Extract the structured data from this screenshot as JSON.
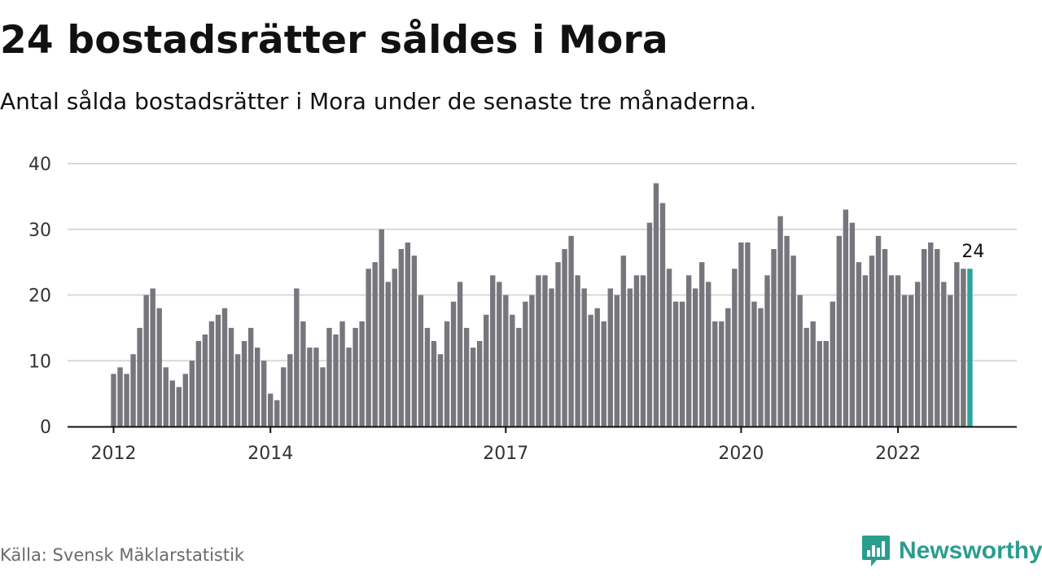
{
  "title": "24 bostadsrätter såldes i Mora",
  "subtitle": "Antal sålda bostadsrätter i Mora under de senaste tre månaderna.",
  "source": "Källa: Svensk Mäklarstatistik",
  "brand": "Newsworthy",
  "colors": {
    "bar": "#77767c",
    "highlight": "#2aa39a",
    "grid": "#d9d9d9",
    "axis": "#111111",
    "brand": "#2a9d8f"
  },
  "chart_data": {
    "type": "bar",
    "title": "24 bostadsrätter såldes i Mora",
    "subtitle": "Antal sålda bostadsrätter i Mora under de senaste tre månaderna.",
    "ylim": [
      0,
      40
    ],
    "yticks": [
      "0",
      "10",
      "20",
      "30",
      "40"
    ],
    "grid": true,
    "xticks": [
      {
        "label": "2012",
        "index": 0
      },
      {
        "label": "2014",
        "index": 24
      },
      {
        "label": "2017",
        "index": 60
      },
      {
        "label": "2020",
        "index": 96
      },
      {
        "label": "2022",
        "index": 120
      }
    ],
    "start": "2012-01",
    "frequency": "monthly",
    "highlight_label": "24",
    "highlight_index": 131,
    "values": [
      8,
      9,
      8,
      11,
      15,
      20,
      21,
      18,
      9,
      7,
      6,
      8,
      10,
      13,
      14,
      16,
      17,
      18,
      15,
      11,
      13,
      15,
      12,
      10,
      5,
      4,
      9,
      11,
      21,
      16,
      12,
      12,
      9,
      15,
      14,
      16,
      12,
      15,
      16,
      24,
      25,
      30,
      22,
      24,
      27,
      28,
      26,
      20,
      15,
      13,
      11,
      16,
      19,
      22,
      15,
      12,
      13,
      17,
      23,
      22,
      20,
      17,
      15,
      19,
      20,
      23,
      23,
      21,
      25,
      27,
      29,
      23,
      21,
      17,
      18,
      16,
      21,
      20,
      26,
      21,
      23,
      23,
      31,
      37,
      34,
      24,
      19,
      19,
      23,
      21,
      25,
      22,
      16,
      16,
      18,
      24,
      28,
      28,
      19,
      18,
      23,
      27,
      32,
      29,
      26,
      20,
      15,
      16,
      13,
      13,
      19,
      29,
      33,
      31,
      25,
      23,
      26,
      29,
      27,
      23,
      23,
      20,
      20,
      22,
      27,
      28,
      27,
      22,
      20,
      25,
      24,
      24
    ]
  }
}
